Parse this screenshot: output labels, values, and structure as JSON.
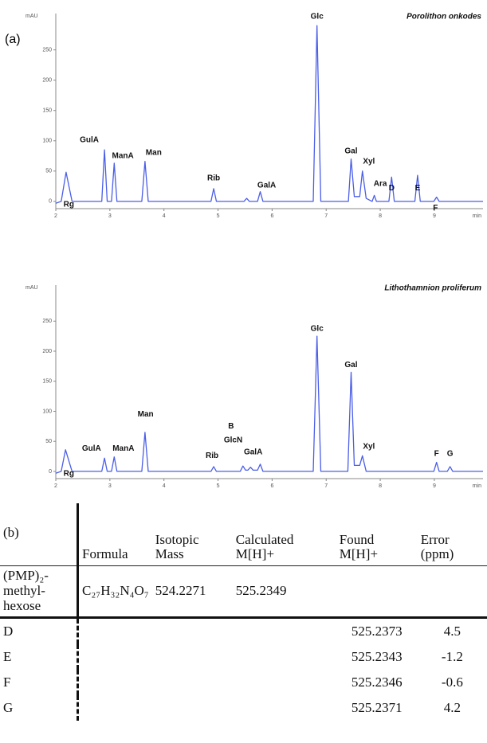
{
  "panel_label": "(a)",
  "chart_data": [
    {
      "type": "line",
      "title": "Porolithon onkodes",
      "x_label": "min",
      "y_label": "mAU",
      "xlim": [
        2,
        9.9
      ],
      "ylim": [
        -12,
        310
      ],
      "xticks": [
        2,
        3,
        4,
        5,
        6,
        7,
        8,
        9
      ],
      "yticks": [
        0,
        50,
        100,
        150,
        200,
        250
      ],
      "color": "#4a5ee8",
      "x": [
        2.0,
        2.1,
        2.19,
        2.3,
        2.85,
        2.9,
        2.95,
        3.03,
        3.08,
        3.13,
        3.59,
        3.65,
        3.71,
        4.87,
        4.92,
        4.97,
        5.48,
        5.53,
        5.58,
        5.73,
        5.78,
        5.83,
        6.76,
        6.83,
        6.9,
        7.41,
        7.46,
        7.52,
        7.62,
        7.67,
        7.74,
        7.85,
        7.89,
        7.93,
        8.16,
        8.21,
        8.26,
        8.64,
        8.69,
        8.74,
        8.99,
        9.04,
        9.09,
        9.9
      ],
      "values": [
        -3,
        0,
        48,
        0,
        0,
        85,
        0,
        0,
        63,
        0,
        0,
        66,
        0,
        0,
        21,
        0,
        0,
        5,
        0,
        0,
        16,
        0,
        0,
        290,
        0,
        0,
        70,
        8,
        8,
        50,
        5,
        0,
        10,
        0,
        0,
        40,
        0,
        0,
        43,
        0,
        0,
        7,
        0,
        0
      ],
      "annotations": [
        {
          "text": "Rg",
          "x": 2.24,
          "y": -5
        },
        {
          "text": "GulA",
          "x": 2.62,
          "y": 101
        },
        {
          "text": "ManA",
          "x": 3.24,
          "y": 75
        },
        {
          "text": "Man",
          "x": 3.81,
          "y": 80
        },
        {
          "text": "Rib",
          "x": 4.92,
          "y": 38
        },
        {
          "text": "GalA",
          "x": 5.9,
          "y": 26
        },
        {
          "text": "Glc",
          "x": 6.83,
          "y": 305
        },
        {
          "text": "Gal",
          "x": 7.46,
          "y": 83
        },
        {
          "text": "Xyl",
          "x": 7.79,
          "y": 66
        },
        {
          "text": "Ara",
          "x": 8.0,
          "y": 29
        },
        {
          "text": "D",
          "x": 8.21,
          "y": 22
        },
        {
          "text": "E",
          "x": 8.69,
          "y": 22
        },
        {
          "text": "F",
          "x": 9.02,
          "y": -11
        }
      ]
    },
    {
      "type": "line",
      "title": "Lithothamnion proliferum",
      "x_label": "min",
      "y_label": "mAU",
      "xlim": [
        2,
        9.9
      ],
      "ylim": [
        -12,
        310
      ],
      "xticks": [
        2,
        3,
        4,
        5,
        6,
        7,
        8,
        9
      ],
      "yticks": [
        0,
        50,
        100,
        150,
        200,
        250
      ],
      "color": "#4a5ee8",
      "x": [
        2.0,
        2.1,
        2.18,
        2.3,
        2.85,
        2.9,
        2.95,
        3.03,
        3.08,
        3.13,
        3.59,
        3.65,
        3.71,
        4.87,
        4.92,
        4.97,
        5.41,
        5.46,
        5.51,
        5.55,
        5.6,
        5.65,
        5.73,
        5.78,
        5.83,
        6.76,
        6.83,
        6.9,
        7.4,
        7.46,
        7.52,
        7.62,
        7.67,
        7.74,
        8.99,
        9.04,
        9.09,
        9.24,
        9.29,
        9.34,
        9.9
      ],
      "values": [
        -3,
        0,
        36,
        0,
        0,
        22,
        0,
        0,
        24,
        0,
        0,
        65,
        0,
        0,
        8,
        0,
        0,
        9,
        2,
        2,
        7,
        2,
        2,
        12,
        0,
        0,
        225,
        0,
        0,
        165,
        10,
        10,
        26,
        0,
        0,
        15,
        0,
        0,
        8,
        0,
        0
      ],
      "annotations": [
        {
          "text": "Rg",
          "x": 2.24,
          "y": -4
        },
        {
          "text": "GulA",
          "x": 2.66,
          "y": 38
        },
        {
          "text": "ManA",
          "x": 3.25,
          "y": 38
        },
        {
          "text": "Man",
          "x": 3.66,
          "y": 95
        },
        {
          "text": "Rib",
          "x": 4.89,
          "y": 26
        },
        {
          "text": "GlcN",
          "x": 5.28,
          "y": 52
        },
        {
          "text": "B",
          "x": 5.24,
          "y": 75
        },
        {
          "text": "GalA",
          "x": 5.65,
          "y": 32
        },
        {
          "text": "Glc",
          "x": 6.83,
          "y": 237
        },
        {
          "text": "Gal",
          "x": 7.46,
          "y": 177
        },
        {
          "text": "Xyl",
          "x": 7.79,
          "y": 41
        },
        {
          "text": "F",
          "x": 9.04,
          "y": 29
        },
        {
          "text": "G",
          "x": 9.29,
          "y": 29
        }
      ]
    }
  ],
  "table": {
    "header": [
      "(b)",
      "Formula",
      "Isotopic Mass",
      "Calculated M[H]+",
      "Found M[H]+",
      "Error (ppm)"
    ],
    "compound": {
      "name": "(PMP)₂-methyl-hexose",
      "formula": "C₂₇H₃₂N₄O₇",
      "isotopic_mass": "524.2271",
      "calculated": "525.2349"
    },
    "rows": [
      {
        "name": "D",
        "found": "525.2373",
        "error": "4.5"
      },
      {
        "name": "E",
        "found": "525.2343",
        "error": "-1.2"
      },
      {
        "name": "F",
        "found": "525.2346",
        "error": "-0.6"
      },
      {
        "name": "G",
        "found": "525.2371",
        "error": "4.2"
      }
    ]
  }
}
